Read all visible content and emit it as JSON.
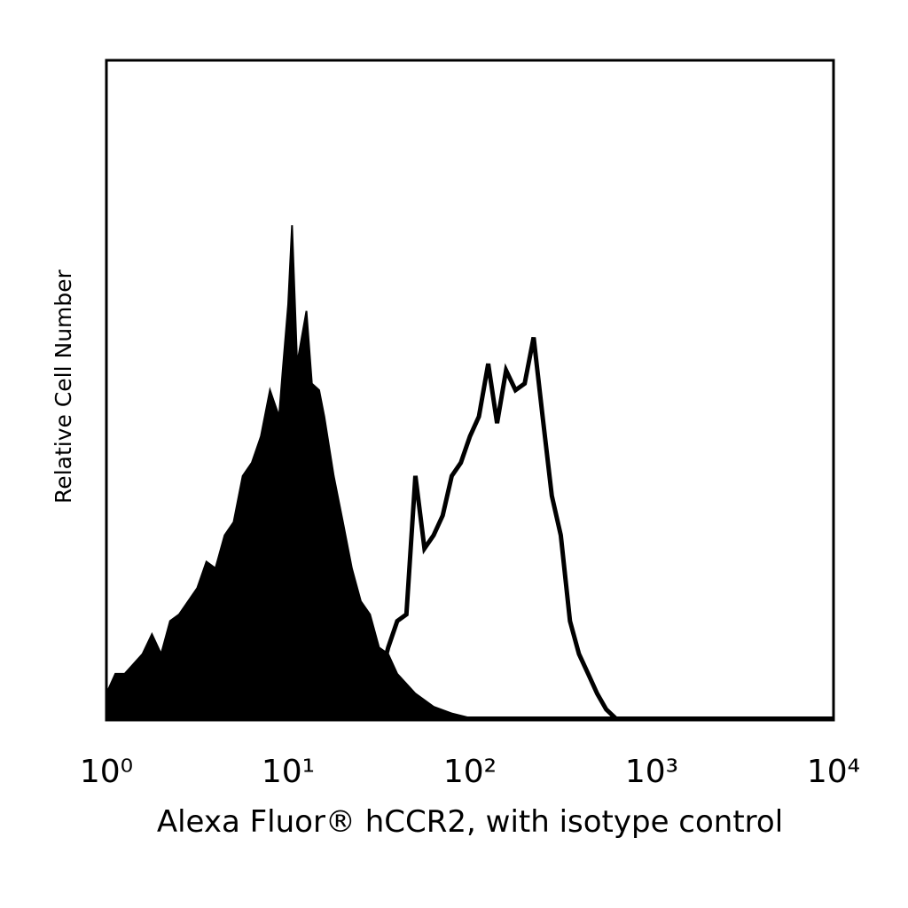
{
  "chart_data": {
    "type": "histogram",
    "xlabel": "Alexa Fluor® hCCR2, with isotype control",
    "ylabel": "Relative Cell Number",
    "xscale": "log",
    "xlim": [
      1,
      10000
    ],
    "xticks": [
      {
        "value": 1,
        "label": "10⁰"
      },
      {
        "value": 10,
        "label": "10¹"
      },
      {
        "value": 100,
        "label": "10²"
      },
      {
        "value": 1000,
        "label": "10³"
      },
      {
        "value": 10000,
        "label": "10⁴"
      }
    ],
    "ylim": [
      0,
      100
    ],
    "series": [
      {
        "color": "#000000",
        "filled": true,
        "x": [
          1,
          1.12,
          1.26,
          1.58,
          1.78,
          2,
          2.24,
          2.51,
          3.16,
          3.55,
          3.98,
          4.47,
          5.01,
          5.62,
          6.31,
          7.08,
          7.94,
          8.91,
          9.33,
          10,
          10.5,
          11.2,
          12.6,
          13.5,
          14.8,
          15.8,
          17.8,
          20,
          22.4,
          25.1,
          28.2,
          31.6,
          35.5,
          39.8,
          50.1,
          63.1,
          79.4,
          100,
          126
        ],
        "values": [
          4,
          7,
          7,
          10,
          13,
          10,
          15,
          16,
          20,
          24,
          23,
          28,
          30,
          37,
          39,
          43,
          50,
          46,
          53,
          63,
          75,
          54,
          62,
          51,
          50,
          46,
          37,
          30,
          23,
          18,
          16,
          11,
          10,
          7,
          4,
          2,
          1,
          0.3,
          0
        ]
      },
      {
        "color": "#000000",
        "filled": false,
        "x": [
          28.2,
          35.5,
          39.8,
          44.7,
          50.1,
          56.2,
          63.1,
          70.8,
          79.4,
          89.1,
          100,
          112,
          126,
          141,
          158,
          178,
          200,
          224,
          251,
          282,
          316,
          355,
          398,
          447,
          501,
          562,
          631
        ],
        "values": [
          0.3,
          11,
          15,
          16,
          37,
          26,
          28,
          31,
          37,
          39,
          43,
          46,
          54,
          45,
          53,
          50,
          51,
          58,
          46,
          34,
          28,
          15,
          10,
          7,
          4,
          1.6,
          0.3
        ]
      }
    ]
  }
}
